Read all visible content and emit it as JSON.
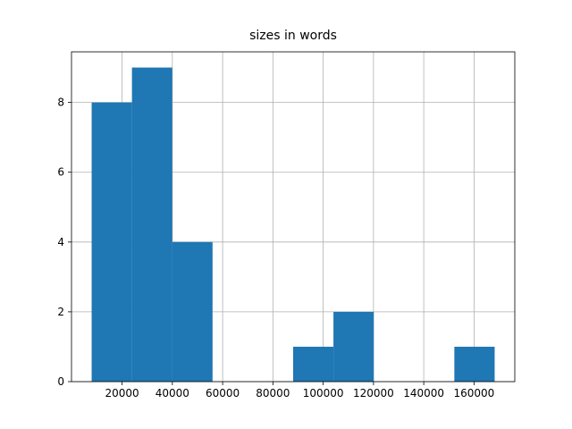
{
  "chart_data": {
    "type": "histogram",
    "title": "sizes in words",
    "bins": [
      7900,
      23930,
      39960,
      55990,
      72020,
      88050,
      104080,
      120110,
      136140,
      152170,
      168200
    ],
    "values": [
      8,
      9,
      4,
      0,
      0,
      1,
      2,
      0,
      0,
      1
    ],
    "color": "#1f77b4",
    "xlim": [
      -115,
      176215
    ],
    "xticks": [
      20000,
      40000,
      60000,
      80000,
      100000,
      120000,
      140000,
      160000
    ],
    "ylim": [
      0,
      9.45
    ],
    "yticks": [
      0,
      2,
      4,
      6,
      8
    ],
    "grid": true
  }
}
